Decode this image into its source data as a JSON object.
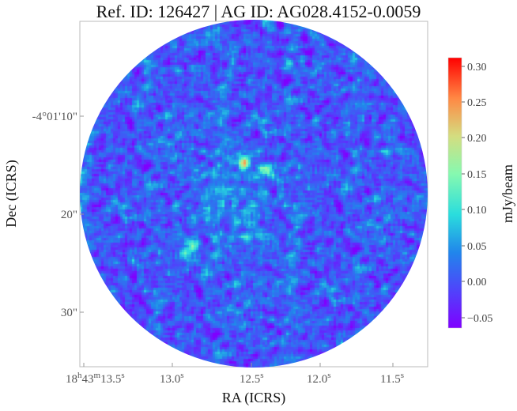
{
  "title": "Ref. ID: 126427 | AG ID: AG028.4152-0.0059",
  "chart_data": {
    "type": "heatmap",
    "title": "Ref. ID: 126427 | AG ID: AG028.4152-0.0059",
    "xlabel": "RA (ICRS)",
    "ylabel": "Dec (ICRS)",
    "x_ticks": [
      {
        "h": "18",
        "m": "43",
        "s": "13.5"
      },
      {
        "s": "13.0"
      },
      {
        "s": "12.5"
      },
      {
        "s": "12.0"
      },
      {
        "s": "11.5"
      }
    ],
    "y_ticks": [
      "-4°01'10\"",
      "20\"",
      "30\""
    ],
    "colorbar": {
      "label": "mJy/beam",
      "ticks": [
        "0.30",
        "0.25",
        "0.20",
        "0.15",
        "0.10",
        "0.05",
        "0.00",
        "−0.05"
      ],
      "range": [
        -0.07,
        0.315
      ],
      "colormap": "rainbow (purple-blue-cyan-green-yellow-red)"
    },
    "footprint": "circular",
    "colors": {
      "low": "#7f00ff",
      "mid": "#2adddd",
      "high": "#ff0000",
      "frame": "#bbbbbb"
    },
    "noise_std": 0.04,
    "noise_mean": 0.0,
    "peak": 0.31,
    "emission_peaks": [
      {
        "ra_s": "12.46",
        "dec": "-4°01'14\"",
        "value": 0.31
      },
      {
        "ra_s": "12.33",
        "dec": "-4°01'15\"",
        "value": 0.28
      },
      {
        "ra_s": "12.79",
        "dec": "-4°01'22\"",
        "value": 0.24
      },
      {
        "ra_s": "12.88",
        "dec": "-4°01'23\"",
        "value": 0.22
      }
    ]
  }
}
